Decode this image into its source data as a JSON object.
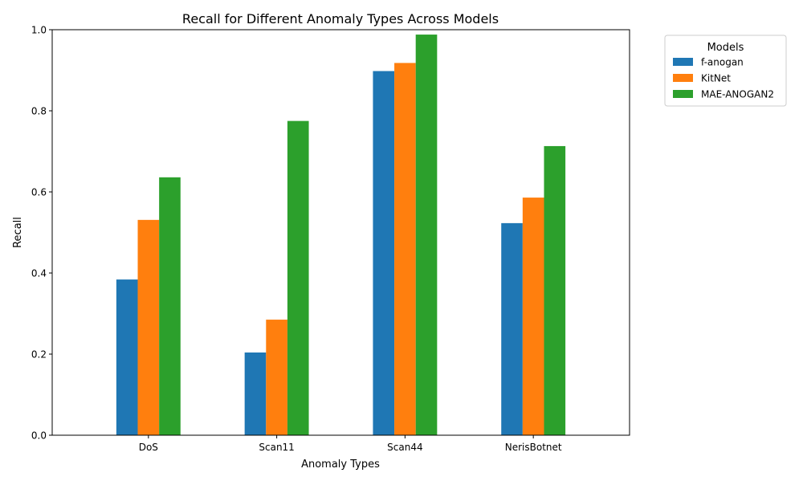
{
  "chart_data": {
    "type": "bar",
    "title": "Recall for Different Anomaly Types Across Models",
    "xlabel": "Anomaly Types",
    "ylabel": "Recall",
    "ylim": [
      0,
      1.0
    ],
    "yticks": [
      "0.0",
      "0.2",
      "0.4",
      "0.6",
      "0.8",
      "1.0"
    ],
    "categories": [
      "DoS",
      "Scan11",
      "Scan44",
      "NerisBotnet"
    ],
    "series": [
      {
        "name": "f-anogan",
        "color": "#1f77b4",
        "values": [
          0.384,
          0.204,
          0.898,
          0.523
        ]
      },
      {
        "name": "KitNet",
        "color": "#ff7f0e",
        "values": [
          0.531,
          0.285,
          0.918,
          0.586
        ]
      },
      {
        "name": "MAE-ANOGAN2",
        "color": "#2ca02c",
        "values": [
          0.636,
          0.775,
          0.988,
          0.713
        ]
      }
    ],
    "legend": {
      "title": "Models",
      "placement": "outside-top-right"
    },
    "grid": false
  }
}
